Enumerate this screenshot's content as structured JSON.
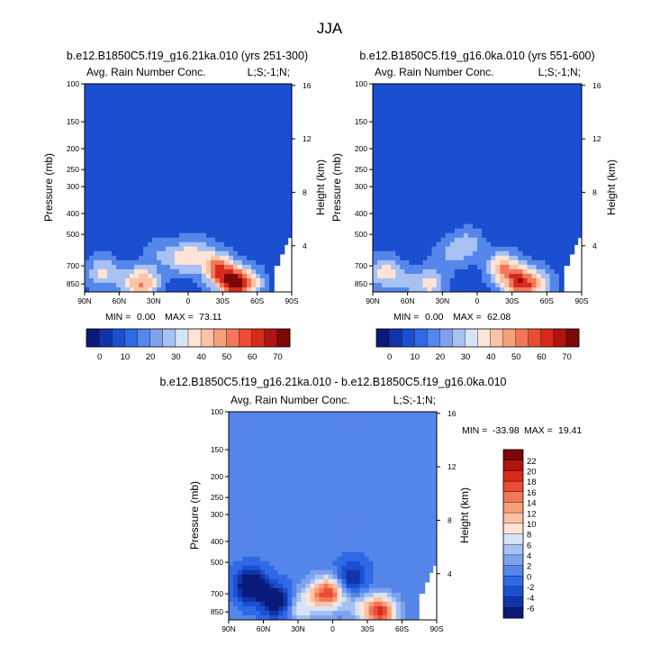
{
  "page": {
    "title": "JJA",
    "mask_color": "#ffffff"
  },
  "chart_data": [
    {
      "type": "heatmap",
      "title": "b.e12.B1850C5.f19_g16.21ka.010 (yrs 251-300)",
      "left_string": "Avg. Rain Number Conc.",
      "right_string": "L;S;-1;N;",
      "xlabel": "",
      "ylabel": "Pressure (mb)",
      "ylabel_right": "Height (km)",
      "x_ticks": [
        "90N",
        "60N",
        "30N",
        "0",
        "30S",
        "60S",
        "90S"
      ],
      "y_ticks": [
        "100",
        "150",
        "200",
        "250",
        "300",
        "400",
        "500",
        "700",
        "850"
      ],
      "y_right_ticks": [
        "4",
        "8",
        "12",
        "16"
      ],
      "min_label": "MIN =",
      "min_value": "0.00",
      "max_label": "MAX =",
      "max_value": "73.11",
      "levels": [
        "0",
        "10",
        "20",
        "30",
        "40",
        "50",
        "60",
        "70"
      ],
      "colors": [
        "#0a1a78",
        "#1234a8",
        "#1a4fd1",
        "#2f6ae6",
        "#5586ea",
        "#7ea3ee",
        "#a7c2f2",
        "#d7e4f8",
        "#fde4d6",
        "#fbc2a6",
        "#f7a07c",
        "#f2775a",
        "#ea4d33",
        "#d62b1c",
        "#b01410",
        "#7c0707"
      ],
      "background_value": 5,
      "blobs": [
        {
          "lat": 75,
          "p": 750,
          "v": 32
        },
        {
          "lat": 52,
          "p": 830,
          "v": 22
        },
        {
          "lat": 38,
          "p": 850,
          "v": 45
        },
        {
          "lat": 25,
          "p": 620,
          "v": 18
        },
        {
          "lat": 5,
          "p": 650,
          "v": 32
        },
        {
          "lat": -8,
          "p": 600,
          "v": 22
        },
        {
          "lat": -25,
          "p": 720,
          "v": 55
        },
        {
          "lat": -40,
          "p": 840,
          "v": 72
        },
        {
          "lat": -55,
          "p": 850,
          "v": 30
        }
      ]
    },
    {
      "type": "heatmap",
      "title": "b.e12.B1850C5.f19_g16.0ka.010 (yrs 551-600)",
      "left_string": "Avg. Rain Number Conc.",
      "right_string": "L;S;-1;N;",
      "xlabel": "",
      "ylabel": "Pressure (mb)",
      "ylabel_right": "Height (km)",
      "x_ticks": [
        "90N",
        "60N",
        "30N",
        "0",
        "30S",
        "60S",
        "90S"
      ],
      "y_ticks": [
        "100",
        "150",
        "200",
        "250",
        "300",
        "400",
        "500",
        "700",
        "850"
      ],
      "y_right_ticks": [
        "4",
        "8",
        "12",
        "16"
      ],
      "min_label": "MIN =",
      "min_value": "0.00",
      "max_label": "MAX =",
      "max_value": "62.08",
      "levels": [
        "0",
        "10",
        "20",
        "30",
        "40",
        "50",
        "60",
        "70"
      ],
      "colors": [
        "#0a1a78",
        "#1234a8",
        "#1a4fd1",
        "#2f6ae6",
        "#5586ea",
        "#7ea3ee",
        "#a7c2f2",
        "#d7e4f8",
        "#fde4d6",
        "#fbc2a6",
        "#f7a07c",
        "#f2775a",
        "#ea4d33",
        "#d62b1c",
        "#b01410",
        "#7c0707"
      ],
      "background_value": 5,
      "blobs": [
        {
          "lat": 80,
          "p": 750,
          "v": 35
        },
        {
          "lat": 60,
          "p": 830,
          "v": 20
        },
        {
          "lat": 40,
          "p": 850,
          "v": 32
        },
        {
          "lat": 25,
          "p": 620,
          "v": 20
        },
        {
          "lat": 8,
          "p": 560,
          "v": 26
        },
        {
          "lat": -22,
          "p": 720,
          "v": 48
        },
        {
          "lat": -38,
          "p": 840,
          "v": 62
        },
        {
          "lat": -55,
          "p": 850,
          "v": 28
        }
      ]
    },
    {
      "type": "heatmap",
      "title": "b.e12.B1850C5.f19_g16.21ka.010 - b.e12.B1850C5.f19_g16.0ka.010",
      "left_string": "Avg. Rain Number Conc.",
      "right_string": "L;S;-1;N;",
      "xlabel": "",
      "ylabel": "Pressure (mb)",
      "ylabel_right": "Height (km)",
      "x_ticks": [
        "90N",
        "60N",
        "30N",
        "0",
        "30S",
        "60S",
        "90S"
      ],
      "y_ticks": [
        "100",
        "150",
        "200",
        "250",
        "300",
        "400",
        "500",
        "700",
        "850"
      ],
      "y_right_ticks": [
        "4",
        "8",
        "12",
        "16"
      ],
      "min_label": "MIN =",
      "min_value": "-33.98",
      "max_label": "MAX =",
      "max_value": "19.41",
      "levels": [
        "-6",
        "-4",
        "-2",
        "0",
        "2",
        "4",
        "6",
        "8",
        "10",
        "12",
        "14",
        "16",
        "18",
        "20",
        "22"
      ],
      "colors": [
        "#0a1a78",
        "#1234a8",
        "#1a4fd1",
        "#2f6ae6",
        "#5586ea",
        "#7ea3ee",
        "#a7c2f2",
        "#d7e4f8",
        "#fde4d6",
        "#fbc2a6",
        "#f7a07c",
        "#f2775a",
        "#ea4d33",
        "#d62b1c",
        "#b01410",
        "#7c0707"
      ],
      "background_value": 0.5,
      "blobs": [
        {
          "lat": 70,
          "p": 640,
          "v": -12
        },
        {
          "lat": 48,
          "p": 760,
          "v": -9
        },
        {
          "lat": 28,
          "p": 820,
          "v": 7
        },
        {
          "lat": 12,
          "p": 700,
          "v": 9
        },
        {
          "lat": 0,
          "p": 690,
          "v": 14
        },
        {
          "lat": -12,
          "p": 620,
          "v": -6
        },
        {
          "lat": -25,
          "p": 820,
          "v": 6
        },
        {
          "lat": -42,
          "p": 850,
          "v": 18
        },
        {
          "lat": -20,
          "p": 560,
          "v": -2
        }
      ]
    }
  ]
}
